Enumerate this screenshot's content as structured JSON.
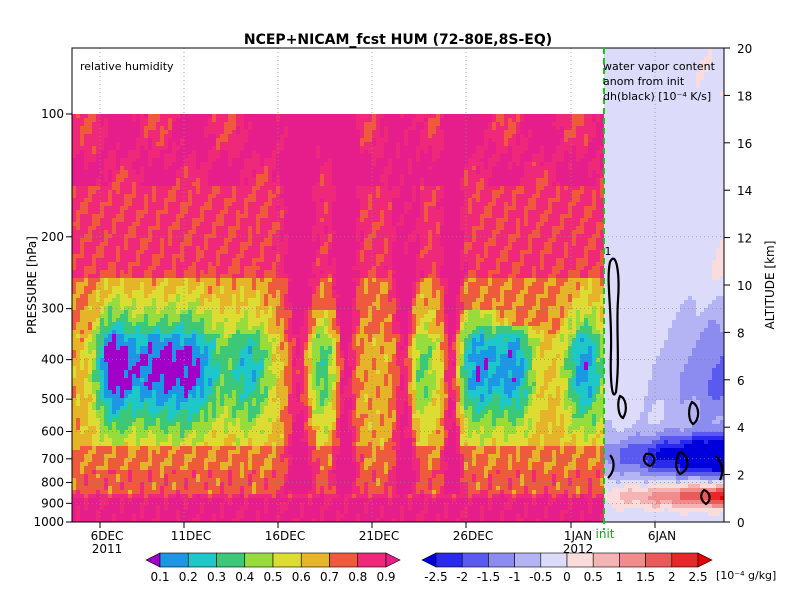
{
  "chart_data": {
    "type": "heatmap",
    "title": "NCEP+NICAM_fcst HUM (72-80E,8S-EQ)",
    "panel_left_label": "relative humidity",
    "panel_right_labels": [
      "water vapor content",
      "anom from init",
      "dh(black) [10⁻⁴ K/s]"
    ],
    "ylabel_left": "PRESSURE [hPa]",
    "ylabel_right": "ALTITUDE [km]",
    "init_label": "init",
    "contour_label": "1",
    "y_left_ticks": [
      "100",
      "200",
      "300",
      "400",
      "500",
      "600",
      "700",
      "800",
      "900",
      "1000"
    ],
    "y_right_ticks": [
      "0",
      "2",
      "4",
      "6",
      "8",
      "10",
      "12",
      "14",
      "16",
      "18",
      "20"
    ],
    "x_ticks": [
      "6DEC",
      "11DEC",
      "16DEC",
      "21DEC",
      "26DEC",
      "1JAN",
      "6JAN"
    ],
    "x_year_labels": [
      {
        "text": "2011",
        "under": "6DEC"
      },
      {
        "text": "2012",
        "under": "1JAN"
      }
    ],
    "colorbar_left": {
      "labels": [
        "0.1",
        "0.2",
        "0.3",
        "0.4",
        "0.5",
        "0.6",
        "0.7",
        "0.8",
        "0.9"
      ],
      "colors": [
        "#a000c8",
        "#1e96e6",
        "#1ec8c8",
        "#3cc878",
        "#96dc3c",
        "#dcdc32",
        "#e6b428",
        "#f05a3c",
        "#f0287a",
        "#e61e8c"
      ]
    },
    "colorbar_right": {
      "labels": [
        "-2.5",
        "-2",
        "-1.5",
        "-1",
        "-0.5",
        "0",
        "0.5",
        "1",
        "1.5",
        "2",
        "2.5"
      ],
      "unit": "[10⁻⁴ g/kg]",
      "colors": [
        "#0000dc",
        "#2a2aee",
        "#5a5af0",
        "#8c8cf0",
        "#b4b4f4",
        "#dcdcfa",
        "#fadcdc",
        "#f5b4b4",
        "#f08c8c",
        "#eb5a5a",
        "#e62828",
        "#e60000"
      ]
    }
  }
}
